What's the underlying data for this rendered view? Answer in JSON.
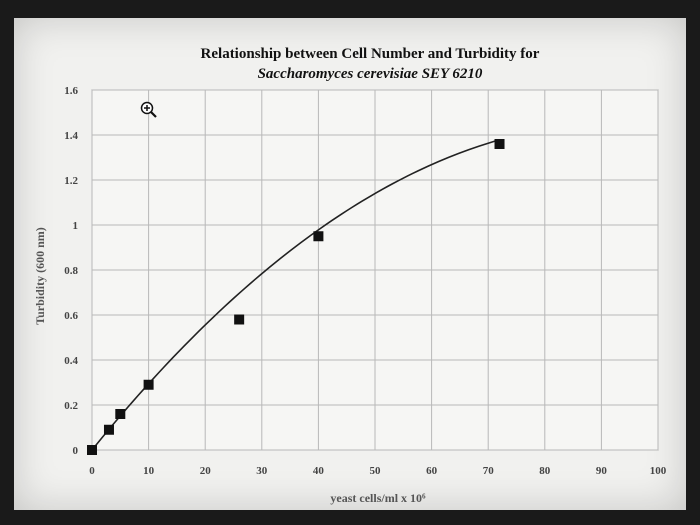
{
  "chart_data": {
    "type": "scatter",
    "title": "Relationship between Cell Number and Turbidity for",
    "subtitle": "Saccharomyces cerevisiae SEY 6210",
    "xlabel": "yeast cells/ml x 10⁶",
    "ylabel": "Turbidity (600 nm)",
    "xlim": [
      0,
      100
    ],
    "ylim": [
      0,
      1.6
    ],
    "x_ticks": [
      "0",
      "10",
      "20",
      "30",
      "40",
      "50",
      "60",
      "70",
      "80",
      "90",
      "100"
    ],
    "y_ticks": [
      "0",
      "0.2",
      "0.4",
      "0.6",
      "0.8",
      "1",
      "1.2",
      "1.4",
      "1.6"
    ],
    "grid": true,
    "legend": false,
    "series": [
      {
        "points": [
          {
            "x": 0,
            "y": 0
          },
          {
            "x": 3,
            "y": 0.09
          },
          {
            "x": 5,
            "y": 0.16
          },
          {
            "x": 10,
            "y": 0.29
          },
          {
            "x": 26,
            "y": 0.58
          },
          {
            "x": 40,
            "y": 0.95
          },
          {
            "x": 72,
            "y": 1.36
          }
        ]
      }
    ],
    "trendline": {
      "type": "polynomial",
      "coefficients": [
        0.0,
        0.0311,
        -0.000166
      ]
    },
    "marker_color": "#111111",
    "line_color": "#222222",
    "grid_color": "#b8b8b8"
  },
  "zoom_cursor_icon": "zoom-in-cursor-icon"
}
